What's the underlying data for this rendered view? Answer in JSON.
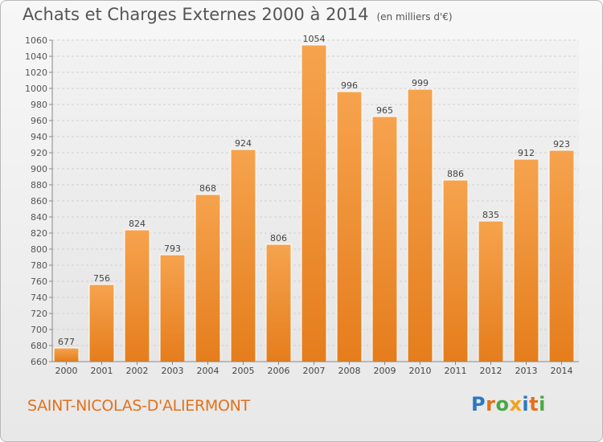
{
  "header": {
    "title": "Achats et Charges Externes 2000 à 2014",
    "unit": "(en milliers d'€)"
  },
  "footer": {
    "commune": "SAINT-NICOLAS-D'ALIERMONT",
    "logo": {
      "letters": [
        "P",
        "r",
        "o",
        "x",
        "i",
        "t",
        "i"
      ],
      "colors": [
        "#2b78c2",
        "#e2711d",
        "#49a845",
        "#f2a21c",
        "#2b78c2",
        "#e2711d",
        "#49a845"
      ]
    }
  },
  "chart_data": {
    "type": "bar",
    "categories": [
      "2000",
      "2001",
      "2002",
      "2003",
      "2004",
      "2005",
      "2006",
      "2007",
      "2008",
      "2009",
      "2010",
      "2011",
      "2012",
      "2013",
      "2014"
    ],
    "values": [
      677,
      756,
      824,
      793,
      868,
      924,
      806,
      1054,
      996,
      965,
      999,
      886,
      835,
      912,
      923
    ],
    "ylim": [
      660,
      1060
    ],
    "ytick_step": 20,
    "grid": true,
    "bar_color_top": "#f6a34e",
    "bar_color_bottom": "#e57d1c"
  }
}
